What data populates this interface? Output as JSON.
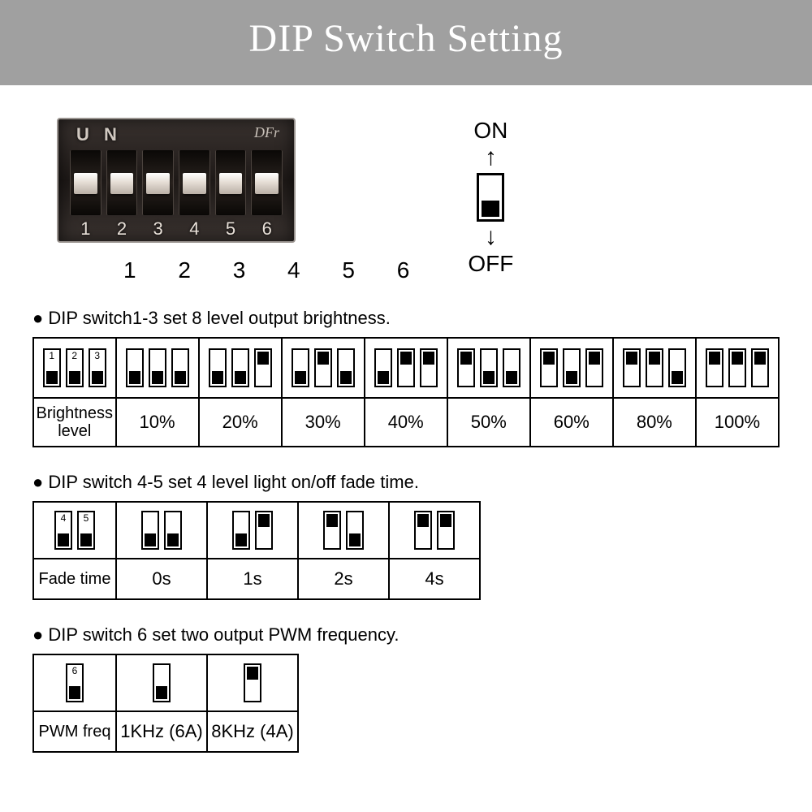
{
  "header": {
    "title": "DIP Switch Setting"
  },
  "photo": {
    "top_text": "U N",
    "logo": "DFr",
    "slider_positions": [
      "mid",
      "mid",
      "mid",
      "mid",
      "mid",
      "mid"
    ],
    "numbers": [
      "1",
      "2",
      "3",
      "4",
      "5",
      "6"
    ],
    "under_numbers": "1 2 3 4 5 6"
  },
  "legend": {
    "on_label": "ON",
    "off_label": "OFF"
  },
  "section1": {
    "title": "DIP switch1-3 set 8 level output brightness.",
    "row_label": "Brightness level",
    "header_switch_numbers": [
      "1",
      "2",
      "3"
    ],
    "columns": [
      {
        "states": [
          "off",
          "off",
          "off"
        ],
        "value": "10%"
      },
      {
        "states": [
          "off",
          "off",
          "on"
        ],
        "value": "20%"
      },
      {
        "states": [
          "off",
          "on",
          "off"
        ],
        "value": "30%"
      },
      {
        "states": [
          "off",
          "on",
          "on"
        ],
        "value": "40%"
      },
      {
        "states": [
          "on",
          "off",
          "off"
        ],
        "value": "50%"
      },
      {
        "states": [
          "on",
          "off",
          "on"
        ],
        "value": "60%"
      },
      {
        "states": [
          "on",
          "on",
          "off"
        ],
        "value": "80%"
      },
      {
        "states": [
          "on",
          "on",
          "on"
        ],
        "value": "100%"
      }
    ]
  },
  "section2": {
    "title": "DIP switch 4-5 set 4 level light on/off fade time.",
    "row_label": "Fade time",
    "header_switch_numbers": [
      "4",
      "5"
    ],
    "columns": [
      {
        "states": [
          "off",
          "off"
        ],
        "value": "0s"
      },
      {
        "states": [
          "off",
          "on"
        ],
        "value": "1s"
      },
      {
        "states": [
          "on",
          "off"
        ],
        "value": "2s"
      },
      {
        "states": [
          "on",
          "on"
        ],
        "value": "4s"
      }
    ]
  },
  "section3": {
    "title": "DIP switch 6 set two output PWM frequency.",
    "row_label": "PWM freq",
    "header_switch_numbers": [
      "6"
    ],
    "columns": [
      {
        "states": [
          "off"
        ],
        "value": "1KHz (6A)"
      },
      {
        "states": [
          "on"
        ],
        "value": "8KHz (4A)"
      }
    ]
  },
  "colors": {
    "header_bg": "#a0a0a0",
    "header_fg": "#ffffff",
    "border": "#000000",
    "page_bg": "#ffffff",
    "text": "#000000"
  },
  "typography": {
    "header_font": "Times New Roman serif",
    "header_size_pt": 36,
    "body_font": "Century Gothic / Futura sans-serif",
    "body_size_pt": 16
  }
}
